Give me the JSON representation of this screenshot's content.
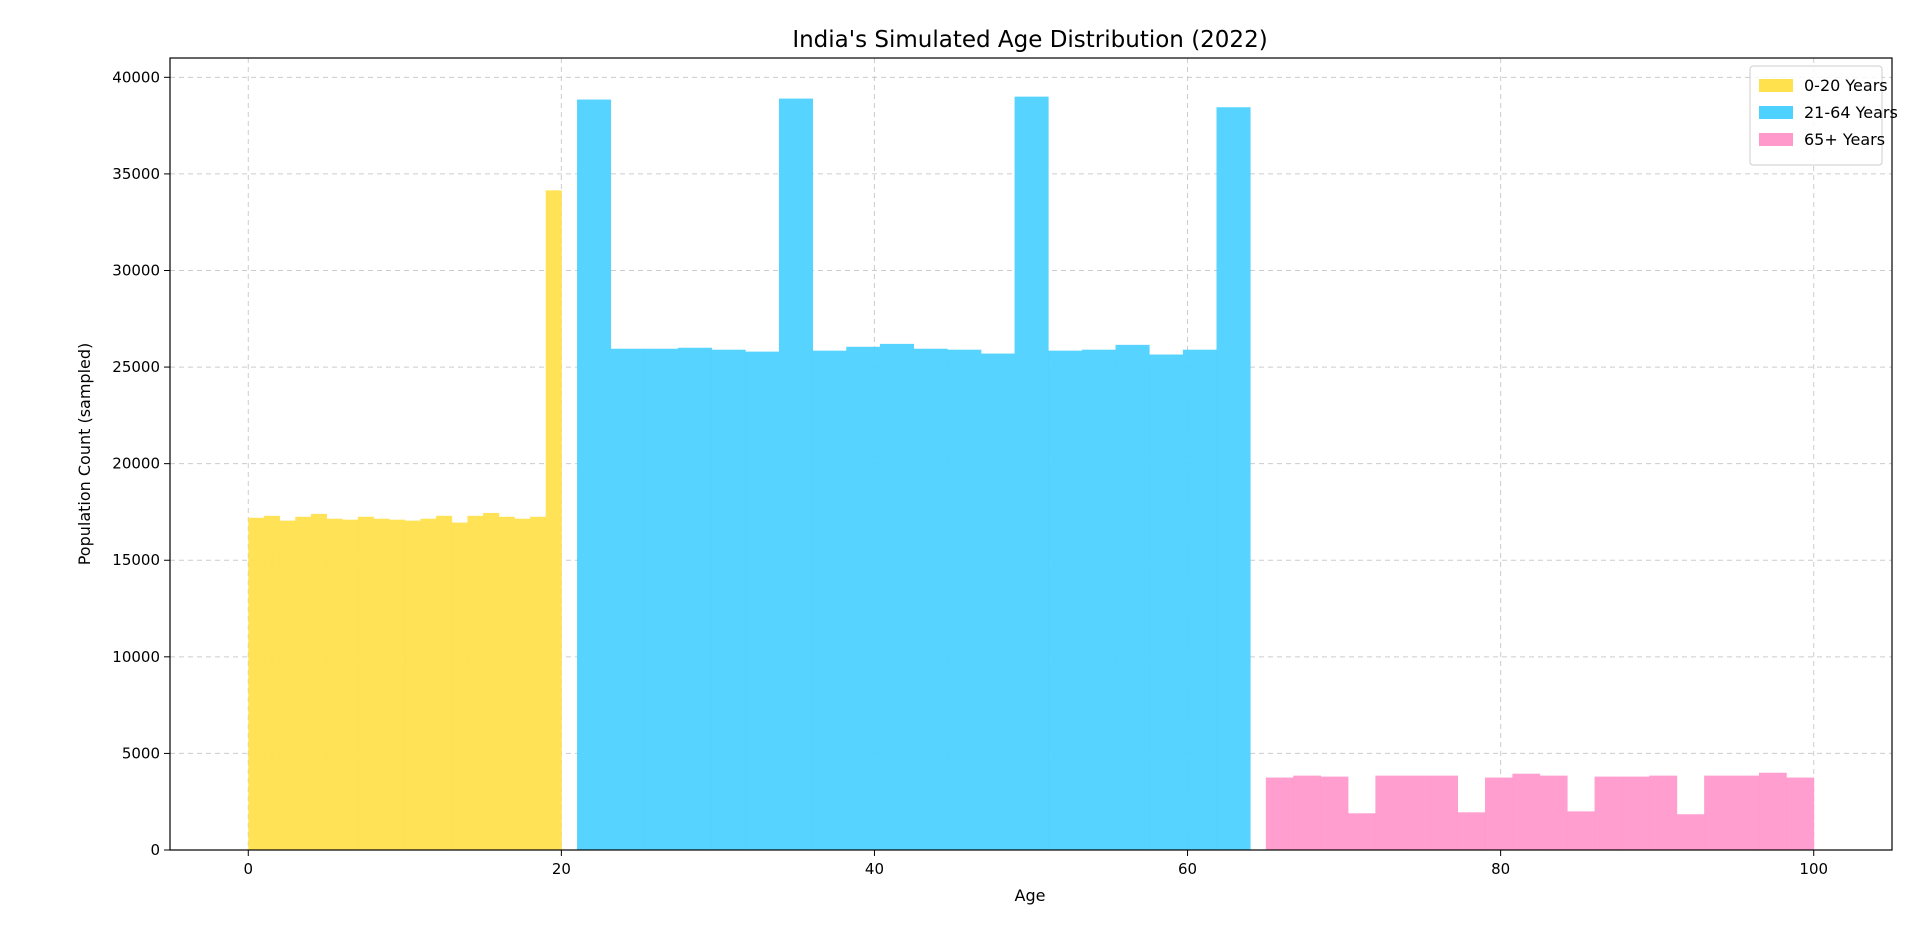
{
  "chart_data": {
    "type": "bar",
    "title": "India's Simulated Age Distribution (2022)",
    "xlabel": "Age",
    "ylabel": "Population Count (sampled)",
    "xlim": [
      -5,
      105
    ],
    "ylim": [
      0,
      41000
    ],
    "xticks": [
      0,
      20,
      40,
      60,
      80,
      100
    ],
    "yticks": [
      0,
      5000,
      10000,
      15000,
      20000,
      25000,
      30000,
      35000,
      40000
    ],
    "grid": true,
    "legend_position": "top-right",
    "series": [
      {
        "name": "0-20 Years",
        "color": "#ffe04d",
        "bins": [
          0,
          1,
          2,
          3,
          4,
          5,
          6,
          7,
          8,
          9,
          10,
          11,
          12,
          13,
          14,
          15,
          16,
          17,
          18,
          19,
          20
        ],
        "values": [
          17200,
          17300,
          17050,
          17250,
          17400,
          17150,
          17100,
          17250,
          17150,
          17100,
          17050,
          17150,
          17300,
          16950,
          17300,
          17450,
          17250,
          17150,
          17250,
          34150
        ]
      },
      {
        "name": "21-64 Years",
        "color": "#4dd2ff",
        "bins": [
          21,
          23.15,
          25.3,
          27.45,
          29.6,
          31.75,
          33.9,
          36.05,
          38.2,
          40.35,
          42.5,
          44.65,
          46.8,
          48.95,
          51.1,
          53.25,
          55.4,
          57.55,
          59.7,
          61.85,
          64
        ],
        "values": [
          38850,
          25950,
          25950,
          26000,
          25900,
          25800,
          38900,
          25850,
          26050,
          26200,
          25950,
          25900,
          25700,
          39000,
          25850,
          25900,
          26150,
          25650,
          25900,
          38450
        ]
      },
      {
        "name": "65+ Years",
        "color": "#ff99cc",
        "bins": [
          65,
          66.75,
          68.5,
          70.25,
          72,
          73.75,
          75.5,
          77.25,
          79,
          80.75,
          82.5,
          84.25,
          86,
          87.75,
          89.5,
          91.25,
          93,
          94.75,
          96.5,
          98.25,
          100
        ],
        "values": [
          3750,
          3850,
          3800,
          1900,
          3850,
          3850,
          3850,
          1950,
          3750,
          3950,
          3850,
          2000,
          3800,
          3800,
          3850,
          1850,
          3850,
          3850,
          4000,
          3750
        ]
      }
    ]
  }
}
